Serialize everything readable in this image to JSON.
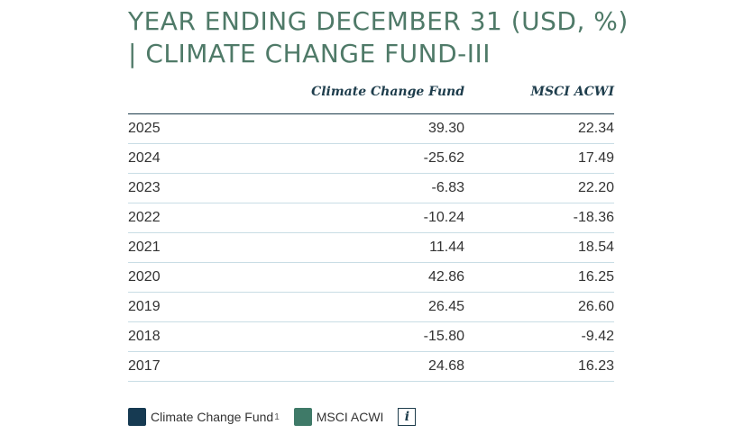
{
  "title": "YEAR ENDING DECEMBER 31 (USD, %) | CLIMATE CHANGE FUND-III",
  "chart_data": {
    "type": "table",
    "columns": [
      "",
      "Climate Change Fund",
      "MSCI ACWI"
    ],
    "rows": [
      {
        "year": "2025",
        "fund": "39.30",
        "index": "22.34"
      },
      {
        "year": "2024",
        "fund": "-25.62",
        "index": "17.49"
      },
      {
        "year": "2023",
        "fund": "-6.83",
        "index": "22.20"
      },
      {
        "year": "2022",
        "fund": "-10.24",
        "index": "-18.36"
      },
      {
        "year": "2021",
        "fund": "11.44",
        "index": "18.54"
      },
      {
        "year": "2020",
        "fund": "42.86",
        "index": "16.25"
      },
      {
        "year": "2019",
        "fund": "26.45",
        "index": "26.60"
      },
      {
        "year": "2018",
        "fund": "-15.80",
        "index": "-9.42"
      },
      {
        "year": "2017",
        "fund": "24.68",
        "index": "16.23"
      }
    ]
  },
  "legend": [
    {
      "label": "Climate Change Fund",
      "footnote": "1",
      "color": "#163a52"
    },
    {
      "label": "MSCI ACWI",
      "footnote": "",
      "color": "#3f7a68"
    }
  ],
  "info_icon": "info-icon",
  "info_label": "i"
}
